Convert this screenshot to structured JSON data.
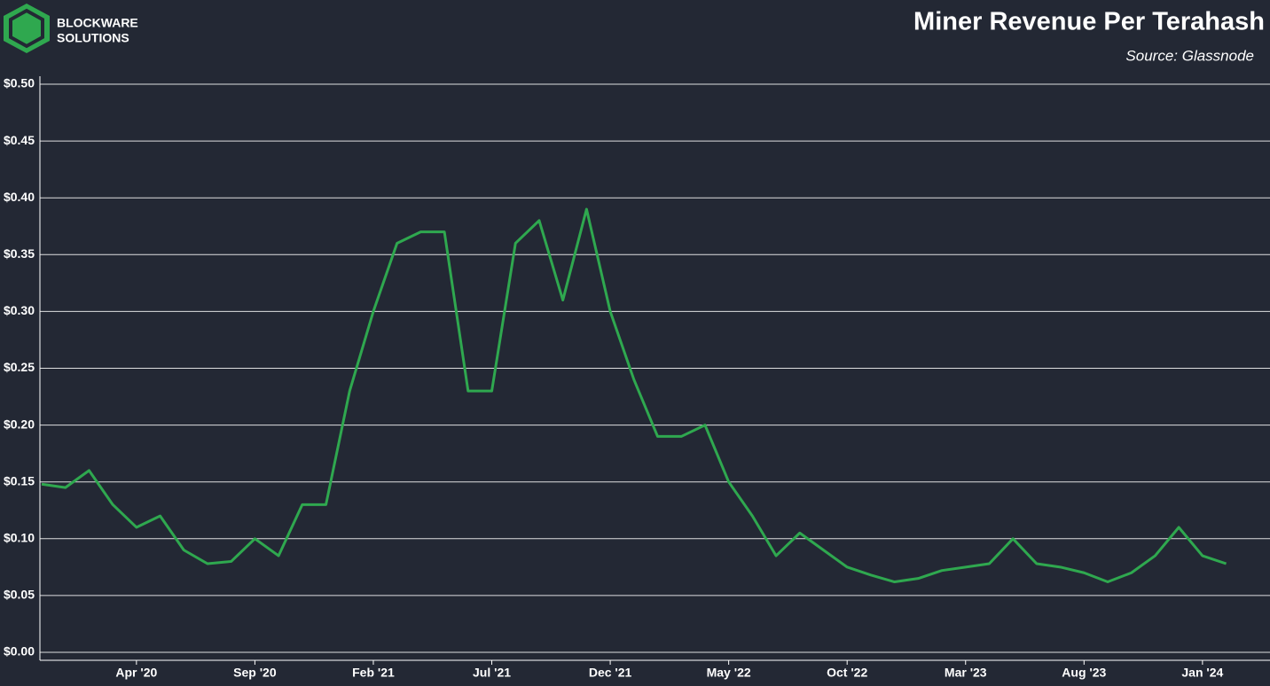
{
  "logo": {
    "line1": "BLOCKWARE",
    "line2": "SOLUTIONS"
  },
  "chart_data": {
    "type": "line",
    "title": "Miner Revenue Per Terahash",
    "subtitle": "Source: Glassnode",
    "x": [
      "2019-12",
      "2020-01",
      "2020-02",
      "2020-03",
      "2020-04",
      "2020-05",
      "2020-06",
      "2020-07",
      "2020-08",
      "2020-09",
      "2020-10",
      "2020-11",
      "2020-12",
      "2021-01",
      "2021-02",
      "2021-03",
      "2021-04",
      "2021-05",
      "2021-06",
      "2021-07",
      "2021-08",
      "2021-09",
      "2021-10",
      "2021-11",
      "2021-12",
      "2022-01",
      "2022-02",
      "2022-03",
      "2022-04",
      "2022-05",
      "2022-06",
      "2022-07",
      "2022-08",
      "2022-09",
      "2022-10",
      "2022-11",
      "2022-12",
      "2023-01",
      "2023-02",
      "2023-03",
      "2023-04",
      "2023-05",
      "2023-06",
      "2023-07",
      "2023-08",
      "2023-09",
      "2023-10",
      "2023-11",
      "2023-12",
      "2024-01",
      "2024-02"
    ],
    "series": [
      {
        "name": "Miner Revenue Per Terahash",
        "color": "#2fa84f",
        "values": [
          0.148,
          0.145,
          0.16,
          0.13,
          0.11,
          0.12,
          0.09,
          0.078,
          0.08,
          0.1,
          0.085,
          0.13,
          0.13,
          0.23,
          0.3,
          0.36,
          0.37,
          0.37,
          0.23,
          0.23,
          0.36,
          0.38,
          0.31,
          0.39,
          0.3,
          0.24,
          0.19,
          0.19,
          0.2,
          0.15,
          0.12,
          0.085,
          0.105,
          0.09,
          0.075,
          0.068,
          0.062,
          0.065,
          0.072,
          0.075,
          0.078,
          0.1,
          0.078,
          0.075,
          0.07,
          0.062,
          0.07,
          0.085,
          0.11,
          0.085,
          0.078
        ]
      }
    ],
    "xlim": [
      "2019-12",
      "2024-04"
    ],
    "xticks": [
      {
        "value": "2020-04",
        "label": "Apr '20"
      },
      {
        "value": "2020-09",
        "label": "Sep '20"
      },
      {
        "value": "2021-02",
        "label": "Feb '21"
      },
      {
        "value": "2021-07",
        "label": "Jul '21"
      },
      {
        "value": "2021-12",
        "label": "Dec '21"
      },
      {
        "value": "2022-05",
        "label": "May '22"
      },
      {
        "value": "2022-10",
        "label": "Oct '22"
      },
      {
        "value": "2023-03",
        "label": "Mar '23"
      },
      {
        "value": "2023-08",
        "label": "Aug '23"
      },
      {
        "value": "2024-01",
        "label": "Jan '24"
      }
    ],
    "ylim": [
      0,
      0.5
    ],
    "yticks": [
      {
        "value": 0,
        "label": "$0.00"
      },
      {
        "value": 0.05,
        "label": "$0.05"
      },
      {
        "value": 0.1,
        "label": "$0.10"
      },
      {
        "value": 0.15,
        "label": "$0.15"
      },
      {
        "value": 0.2,
        "label": "$0.20"
      },
      {
        "value": 0.25,
        "label": "$0.25"
      },
      {
        "value": 0.3,
        "label": "$0.30"
      },
      {
        "value": 0.35,
        "label": "$0.35"
      },
      {
        "value": 0.4,
        "label": "$0.40"
      },
      {
        "value": 0.45,
        "label": "$0.45"
      },
      {
        "value": 0.5,
        "label": "$0.50"
      }
    ],
    "grid": true
  }
}
